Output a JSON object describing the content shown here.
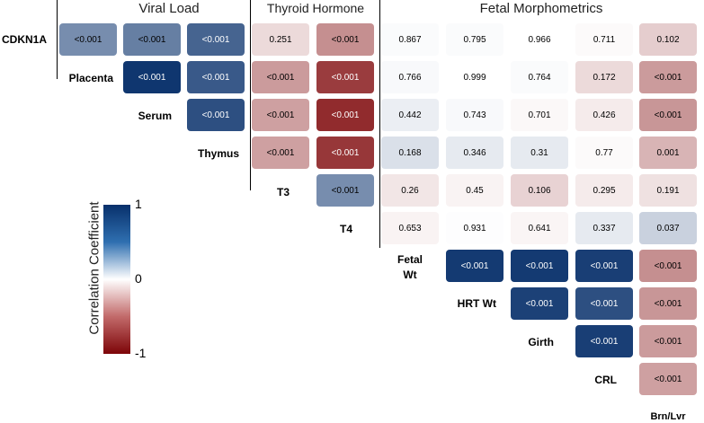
{
  "chart_data": {
    "type": "heatmap",
    "title": "",
    "groups": [
      "Viral Load",
      "Thyroid Hormone",
      "Fetal Morphometrics"
    ],
    "variables": [
      "CDKN1A",
      "Placenta",
      "Serum",
      "Thymus",
      "T3",
      "T4",
      "Fetal Wt",
      "HRT Wt",
      "Girth",
      "CRL",
      "Brn/Lvr"
    ],
    "row_labels": [
      "CDKN1A",
      "Placenta",
      "Serum",
      "Thymus",
      "T3",
      "T4",
      "Fetal Wt",
      "HRT Wt",
      "Girth",
      "CRL"
    ],
    "column_label": "Brn/Lvr",
    "fetal_wt_label_lines": [
      "Fetal",
      "Wt"
    ],
    "legend": {
      "title": "Correlation Coefficient",
      "ticks": [
        "1",
        "0",
        "-1"
      ],
      "high_color": "#08306b",
      "mid_color": "#ffffff",
      "low_color": "#7d0508"
    },
    "cells": [
      {
        "row": 0,
        "col": 1,
        "p": "<0.001",
        "r": 0.55
      },
      {
        "row": 0,
        "col": 2,
        "p": "<0.001",
        "r": 0.62
      },
      {
        "row": 0,
        "col": 3,
        "p": "<0.001",
        "r": 0.75
      },
      {
        "row": 0,
        "col": 4,
        "p": "0.251",
        "r": -0.15
      },
      {
        "row": 0,
        "col": 5,
        "p": "<0.001",
        "r": -0.45
      },
      {
        "row": 0,
        "col": 6,
        "p": "0.867",
        "r": 0.02
      },
      {
        "row": 0,
        "col": 7,
        "p": "0.795",
        "r": 0.02
      },
      {
        "row": 0,
        "col": 8,
        "p": "0.966",
        "r": 0.0
      },
      {
        "row": 0,
        "col": 9,
        "p": "0.711",
        "r": -0.02
      },
      {
        "row": 0,
        "col": 10,
        "p": "0.102",
        "r": -0.2
      },
      {
        "row": 1,
        "col": 2,
        "p": "<0.001",
        "r": 0.97
      },
      {
        "row": 1,
        "col": 3,
        "p": "<0.001",
        "r": 0.8
      },
      {
        "row": 1,
        "col": 4,
        "p": "<0.001",
        "r": -0.4
      },
      {
        "row": 1,
        "col": 5,
        "p": "<0.001",
        "r": -0.78
      },
      {
        "row": 1,
        "col": 6,
        "p": "0.766",
        "r": 0.03
      },
      {
        "row": 1,
        "col": 7,
        "p": "0.999",
        "r": 0.0
      },
      {
        "row": 1,
        "col": 8,
        "p": "0.764",
        "r": 0.02
      },
      {
        "row": 1,
        "col": 9,
        "p": "0.172",
        "r": -0.15
      },
      {
        "row": 1,
        "col": 10,
        "p": "<0.001",
        "r": -0.4
      },
      {
        "row": 2,
        "col": 3,
        "p": "<0.001",
        "r": 0.85
      },
      {
        "row": 2,
        "col": 4,
        "p": "<0.001",
        "r": -0.38
      },
      {
        "row": 2,
        "col": 5,
        "p": "<0.001",
        "r": -0.85
      },
      {
        "row": 2,
        "col": 6,
        "p": "0.442",
        "r": 0.08
      },
      {
        "row": 2,
        "col": 7,
        "p": "0.743",
        "r": 0.03
      },
      {
        "row": 2,
        "col": 8,
        "p": "0.701",
        "r": -0.03
      },
      {
        "row": 2,
        "col": 9,
        "p": "0.426",
        "r": -0.08
      },
      {
        "row": 2,
        "col": 10,
        "p": "<0.001",
        "r": -0.42
      },
      {
        "row": 3,
        "col": 4,
        "p": "<0.001",
        "r": -0.38
      },
      {
        "row": 3,
        "col": 5,
        "p": "<0.001",
        "r": -0.8
      },
      {
        "row": 3,
        "col": 6,
        "p": "0.168",
        "r": 0.15
      },
      {
        "row": 3,
        "col": 7,
        "p": "0.346",
        "r": 0.1
      },
      {
        "row": 3,
        "col": 8,
        "p": "0.31",
        "r": 0.1
      },
      {
        "row": 3,
        "col": 9,
        "p": "0.77",
        "r": -0.02
      },
      {
        "row": 3,
        "col": 10,
        "p": "0.001",
        "r": -0.3
      },
      {
        "row": 4,
        "col": 5,
        "p": "<0.001",
        "r": 0.55
      },
      {
        "row": 4,
        "col": 6,
        "p": "0.26",
        "r": -0.1
      },
      {
        "row": 4,
        "col": 7,
        "p": "0.45",
        "r": -0.05
      },
      {
        "row": 4,
        "col": 8,
        "p": "0.106",
        "r": -0.18
      },
      {
        "row": 4,
        "col": 9,
        "p": "0.295",
        "r": -0.08
      },
      {
        "row": 4,
        "col": 10,
        "p": "0.191",
        "r": -0.12
      },
      {
        "row": 5,
        "col": 6,
        "p": "0.653",
        "r": -0.05
      },
      {
        "row": 5,
        "col": 7,
        "p": "0.931",
        "r": 0.01
      },
      {
        "row": 5,
        "col": 8,
        "p": "0.641",
        "r": -0.04
      },
      {
        "row": 5,
        "col": 9,
        "p": "0.337",
        "r": 0.1
      },
      {
        "row": 5,
        "col": 10,
        "p": "0.037",
        "r": 0.22
      },
      {
        "row": 6,
        "col": 7,
        "p": "<0.001",
        "r": 0.95
      },
      {
        "row": 6,
        "col": 8,
        "p": "<0.001",
        "r": 0.95
      },
      {
        "row": 6,
        "col": 9,
        "p": "<0.001",
        "r": 0.93
      },
      {
        "row": 6,
        "col": 10,
        "p": "<0.001",
        "r": -0.45
      },
      {
        "row": 7,
        "col": 8,
        "p": "<0.001",
        "r": 0.92
      },
      {
        "row": 7,
        "col": 9,
        "p": "<0.001",
        "r": 0.85
      },
      {
        "row": 7,
        "col": 10,
        "p": "<0.001",
        "r": -0.42
      },
      {
        "row": 8,
        "col": 9,
        "p": "<0.001",
        "r": 0.93
      },
      {
        "row": 8,
        "col": 10,
        "p": "<0.001",
        "r": -0.4
      },
      {
        "row": 9,
        "col": 10,
        "p": "<0.001",
        "r": -0.38
      }
    ]
  }
}
